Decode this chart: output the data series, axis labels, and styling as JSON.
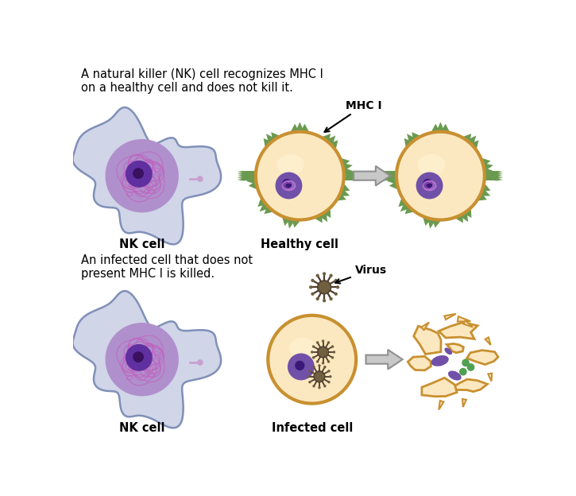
{
  "bg_color": "#ffffff",
  "text_top": "A natural killer (NK) cell recognizes MHC I\non a healthy cell and does not kill it.",
  "text_bottom": "An infected cell that does not\npresent MHC I is killed.",
  "label_nk": "NK cell",
  "label_healthy": "Healthy cell",
  "label_infected": "Infected cell",
  "label_mhc": "MHC I",
  "label_virus": "Virus",
  "nk_cell_outer_color": "#d0d5e8",
  "nk_cell_outer_edge": "#8090b8",
  "nk_cell_cytoplasm_color": "#b090cc",
  "nk_cell_nucleus_color": "#6030a0",
  "nk_cell_nucleolus_color": "#3a1060",
  "healthy_cell_fill": "#fce8c0",
  "healthy_cell_edge": "#c89030",
  "healthy_cell_nucleus_color": "#7050a8",
  "healthy_cell_nucleolus_color": "#3a1878",
  "mhc_spike_color": "#6a9a50",
  "mhc_band_color": "#6a9a50",
  "arrow_fill": "#c8c8c8",
  "arrow_edge": "#909090",
  "synapse_color": "#c8a0d0",
  "virus_body_color": "#706040",
  "virus_spike_color": "#504030",
  "dead_cell_fill": "#fce8c0",
  "dead_cell_edge": "#c89030",
  "dead_nuc_color": "#7050a8",
  "green_dot_color": "#50a050"
}
